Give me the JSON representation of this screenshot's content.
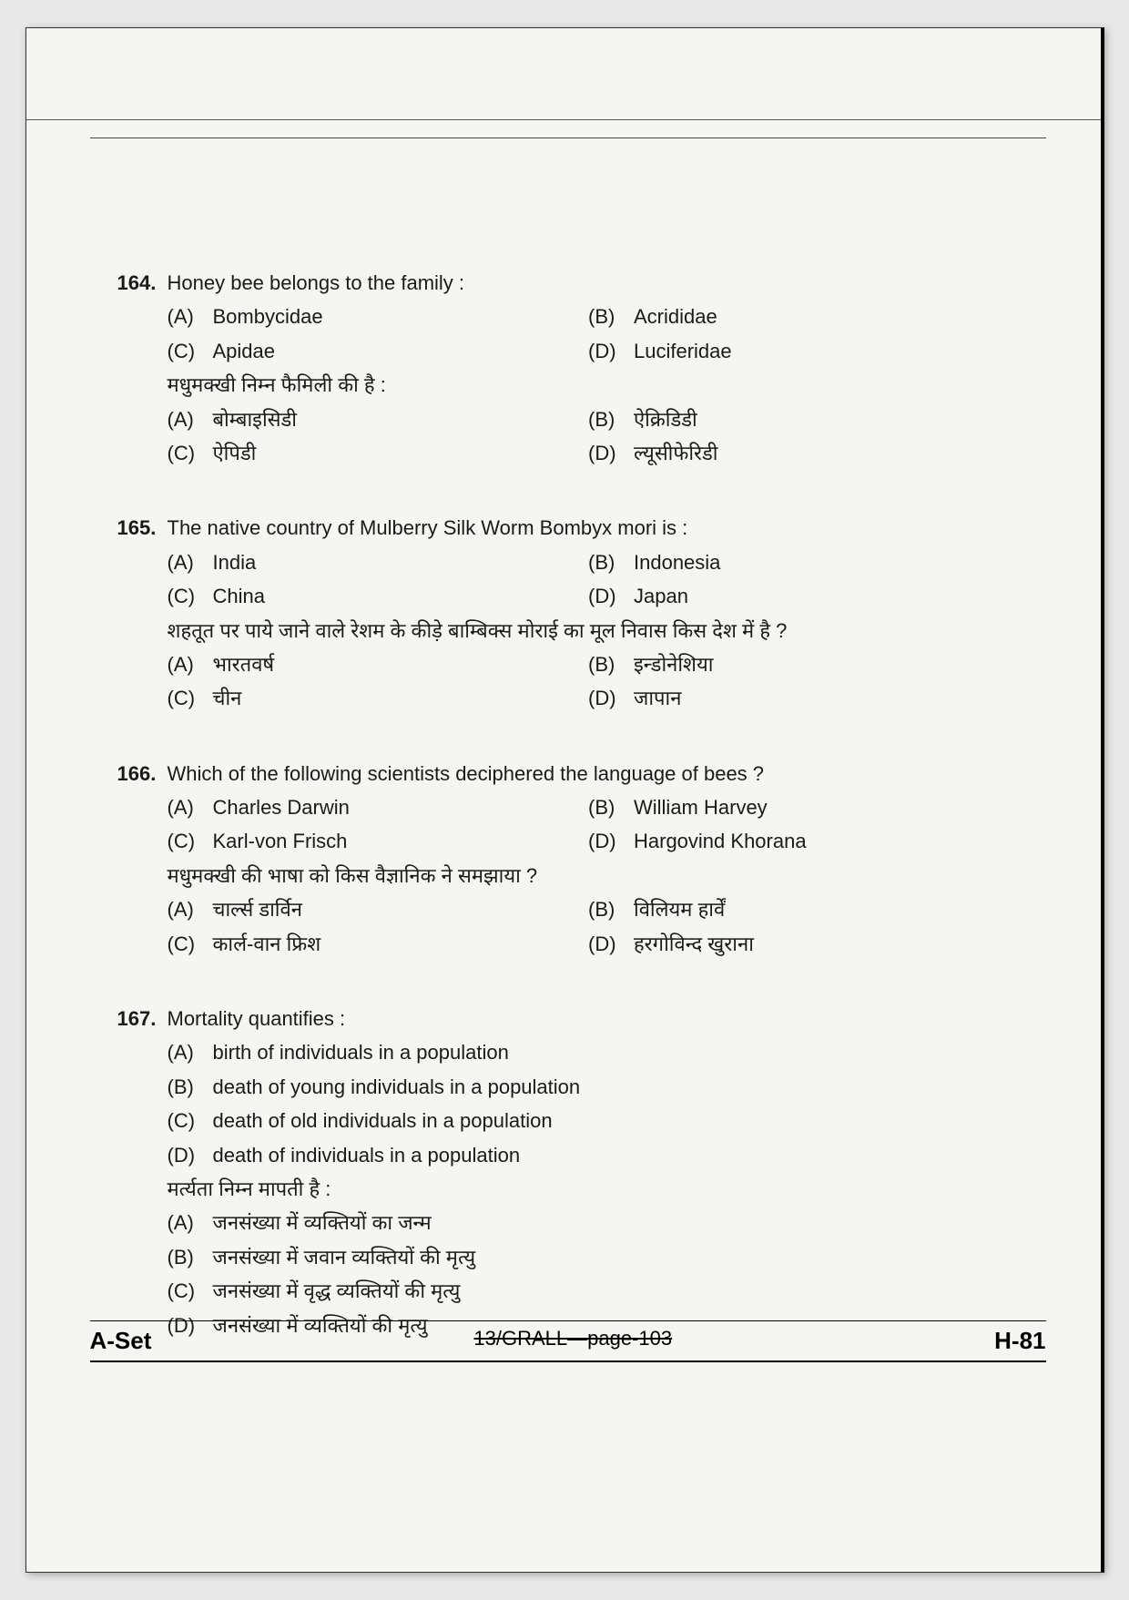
{
  "questions": [
    {
      "num": "164.",
      "text_en": "Honey bee belongs to the family :",
      "opts_en": {
        "A": "Bombycidae",
        "B": "Acrididae",
        "C": "Apidae",
        "D": "Luciferidae"
      },
      "text_hi": "मधुमक्खी निम्न फैमिली की है :",
      "opts_hi": {
        "A": "बोम्बाइसिडी",
        "B": "ऐक्रिडिडी",
        "C": "ऐपिडी",
        "D": "ल्यूसीफेरिडी"
      },
      "layout": "two-col"
    },
    {
      "num": "165.",
      "text_en": "The native country of Mulberry Silk Worm Bombyx mori is :",
      "opts_en": {
        "A": "India",
        "B": "Indonesia",
        "C": "China",
        "D": "Japan"
      },
      "text_hi": "शहतूत पर पाये जाने वाले रेशम के कीड़े बाम्बिक्स मोराई का मूल निवास किस देश में है ?",
      "opts_hi": {
        "A": "भारतवर्ष",
        "B": "इन्डोनेशिया",
        "C": "चीन",
        "D": "जापान"
      },
      "layout": "two-col"
    },
    {
      "num": "166.",
      "text_en": "Which of the following scientists deciphered the language of bees ?",
      "opts_en": {
        "A": "Charles Darwin",
        "B": "William Harvey",
        "C": "Karl-von Frisch",
        "D": "Hargovind Khorana"
      },
      "text_hi": "मधुमक्खी की भाषा को किस वैज्ञानिक ने समझाया ?",
      "opts_hi": {
        "A": "चार्ल्स डार्विन",
        "B": "विलियम हार्वें",
        "C": "कार्ल-वान फ्रिश",
        "D": "हरगोविन्द खुराना"
      },
      "layout": "two-col"
    },
    {
      "num": "167.",
      "text_en": "Mortality quantifies :",
      "opts_en": {
        "A": "birth of individuals in a population",
        "B": "death of young individuals in a population",
        "C": "death of old individuals in a population",
        "D": "death of individuals in a population"
      },
      "text_hi": "मर्त्यता निम्न मापती है :",
      "opts_hi": {
        "A": "जनसंख्या में व्यक्तियों का जन्म",
        "B": "जनसंख्या में जवान व्यक्तियों की मृत्यु",
        "C": "जनसंख्या में वृद्ध व्यक्तियों की मृत्यु",
        "D": "जनसंख्या में व्यक्तियों की मृत्यु"
      },
      "layout": "one-col"
    }
  ],
  "footer": {
    "left": "A-Set",
    "mid": "13/GRALL—page-103",
    "right": "H-81"
  },
  "labels": {
    "A": "(A)",
    "B": "(B)",
    "C": "(C)",
    "D": "(D)"
  }
}
